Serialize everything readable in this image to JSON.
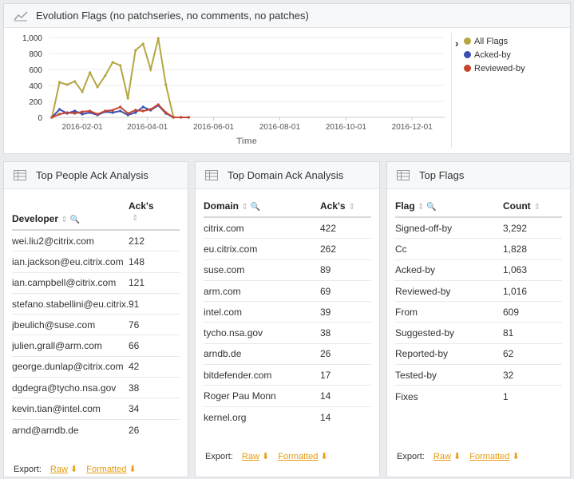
{
  "evolution": {
    "title": "Evolution Flags (no patchseries, no comments, no patches)",
    "legend": [
      {
        "label": "All Flags",
        "color": "#b5a642"
      },
      {
        "label": "Acked-by",
        "color": "#3a4fb0"
      },
      {
        "label": "Reviewed-by",
        "color": "#c7442f"
      }
    ],
    "legend_toggle": "›"
  },
  "chart_data": {
    "type": "line",
    "xlabel": "Time",
    "ylabel": "",
    "ylim": [
      0,
      1000
    ],
    "y_ticks": [
      "0",
      "200",
      "400",
      "600",
      "800",
      "1,000"
    ],
    "x_ticks": [
      "2016-02-01",
      "2016-04-01",
      "2016-06-01",
      "2016-08-01",
      "2016-10-01",
      "2016-12-01"
    ],
    "x": [
      "2016-01-04",
      "2016-01-11",
      "2016-01-18",
      "2016-01-25",
      "2016-02-01",
      "2016-02-08",
      "2016-02-15",
      "2016-02-22",
      "2016-02-29",
      "2016-03-07",
      "2016-03-14",
      "2016-03-21",
      "2016-03-28",
      "2016-04-04",
      "2016-04-11",
      "2016-04-18",
      "2016-04-25",
      "2016-05-02",
      "2016-05-09"
    ],
    "series": [
      {
        "name": "All Flags",
        "color": "#b5a642",
        "values": [
          0,
          440,
          410,
          450,
          320,
          560,
          380,
          520,
          690,
          650,
          240,
          840,
          920,
          600,
          990,
          410,
          0,
          0,
          0
        ]
      },
      {
        "name": "Acked-by",
        "color": "#3a4fb0",
        "values": [
          0,
          100,
          50,
          80,
          40,
          60,
          30,
          70,
          60,
          80,
          30,
          60,
          130,
          90,
          150,
          50,
          0,
          0,
          0
        ]
      },
      {
        "name": "Reviewed-by",
        "color": "#c7442f",
        "values": [
          0,
          40,
          60,
          50,
          70,
          80,
          40,
          80,
          90,
          130,
          50,
          90,
          80,
          100,
          160,
          60,
          0,
          0,
          0
        ]
      }
    ]
  },
  "people": {
    "title": "Top People Ack Analysis",
    "col1": "Developer",
    "col2": "Ack's",
    "rows": [
      [
        "wei.liu2@citrix.com",
        "212"
      ],
      [
        "ian.jackson@eu.citrix.com",
        "148"
      ],
      [
        "ian.campbell@citrix.com",
        "121"
      ],
      [
        "stefano.stabellini@eu.citrix.com",
        "91"
      ],
      [
        "jbeulich@suse.com",
        "76"
      ],
      [
        "julien.grall@arm.com",
        "66"
      ],
      [
        "george.dunlap@citrix.com",
        "42"
      ],
      [
        "dgdegra@tycho.nsa.gov",
        "38"
      ],
      [
        "kevin.tian@intel.com",
        "34"
      ],
      [
        "arnd@arndb.de",
        "26"
      ]
    ]
  },
  "domain": {
    "title": "Top Domain Ack Analysis",
    "col1": "Domain",
    "col2": "Ack's",
    "rows": [
      [
        "citrix.com",
        "422"
      ],
      [
        "eu.citrix.com",
        "262"
      ],
      [
        "suse.com",
        "89"
      ],
      [
        "arm.com",
        "69"
      ],
      [
        "intel.com",
        "39"
      ],
      [
        "tycho.nsa.gov",
        "38"
      ],
      [
        "arndb.de",
        "26"
      ],
      [
        "bitdefender.com",
        "17"
      ],
      [
        "Roger Pau Monn",
        "14"
      ],
      [
        "kernel.org",
        "14"
      ]
    ]
  },
  "flags": {
    "title": "Top Flags",
    "col1": "Flag",
    "col2": "Count",
    "rows": [
      [
        "Signed-off-by",
        "3,292"
      ],
      [
        "Cc",
        "1,828"
      ],
      [
        "Acked-by",
        "1,063"
      ],
      [
        "Reviewed-by",
        "1,016"
      ],
      [
        "From",
        "609"
      ],
      [
        "Suggested-by",
        "81"
      ],
      [
        "Reported-by",
        "62"
      ],
      [
        "Tested-by",
        "32"
      ],
      [
        "Fixes",
        "1"
      ]
    ]
  },
  "export": {
    "label": "Export:",
    "raw": "Raw",
    "formatted": "Formatted"
  }
}
